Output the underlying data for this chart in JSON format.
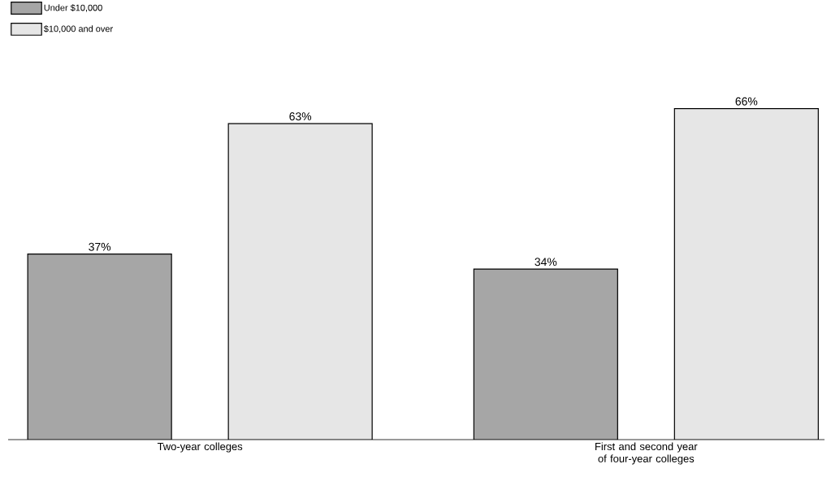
{
  "chart_data": {
    "type": "bar",
    "categories": [
      "Two-year colleges",
      "First and second year of four-year colleges"
    ],
    "series": [
      {
        "name": "Under $10,000",
        "color": "#a6a6a6",
        "values": [
          37,
          34
        ],
        "value_labels": [
          "37%",
          "34%"
        ]
      },
      {
        "name": "$10,000 and over",
        "color": "#e6e6e6",
        "values": [
          63,
          66
        ],
        "value_labels": [
          "63%",
          "66%"
        ]
      }
    ],
    "legend": "top left"
  }
}
